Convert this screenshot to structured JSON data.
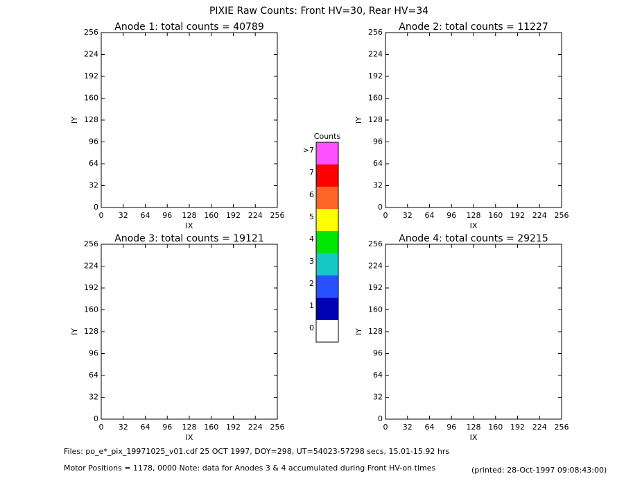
{
  "title": "PIXIE Raw Counts:  Front HV=30, Rear HV=34",
  "chart_data": [
    {
      "type": "heatmap",
      "title": "Anode 1: total counts = 40789",
      "xlabel": "IX",
      "ylabel": "IY",
      "xlim": [
        0,
        256
      ],
      "ylim": [
        0,
        256
      ],
      "xticks": [
        0,
        32,
        64,
        96,
        128,
        160,
        192,
        224,
        256
      ],
      "yticks": [
        0,
        32,
        64,
        96,
        128,
        160,
        192,
        224,
        256
      ]
    },
    {
      "type": "heatmap",
      "title": "Anode 2: total counts = 11227",
      "xlabel": "IX",
      "ylabel": "IY",
      "xlim": [
        0,
        256
      ],
      "ylim": [
        0,
        256
      ],
      "xticks": [
        0,
        32,
        64,
        96,
        128,
        160,
        192,
        224,
        256
      ],
      "yticks": [
        0,
        32,
        64,
        96,
        128,
        160,
        192,
        224,
        256
      ]
    },
    {
      "type": "heatmap",
      "title": "Anode 3: total counts = 19121",
      "xlabel": "IX",
      "ylabel": "IY",
      "xlim": [
        0,
        256
      ],
      "ylim": [
        0,
        256
      ],
      "xticks": [
        0,
        32,
        64,
        96,
        128,
        160,
        192,
        224,
        256
      ],
      "yticks": [
        0,
        32,
        64,
        96,
        128,
        160,
        192,
        224,
        256
      ]
    },
    {
      "type": "heatmap",
      "title": "Anode 4: total counts = 29215",
      "xlabel": "IX",
      "ylabel": "IY",
      "xlim": [
        0,
        256
      ],
      "ylim": [
        0,
        256
      ],
      "xticks": [
        0,
        32,
        64,
        96,
        128,
        160,
        192,
        224,
        256
      ],
      "yticks": [
        0,
        32,
        64,
        96,
        128,
        160,
        192,
        224,
        256
      ]
    }
  ],
  "colorbar": {
    "title": "Counts",
    "labels": [
      0,
      1,
      2,
      3,
      4,
      5,
      6,
      7,
      ">7"
    ],
    "colors": [
      "#ffffff",
      "#0000b4",
      "#2850ff",
      "#14c8c8",
      "#00e600",
      "#ffff00",
      "#ff6428",
      "#ff0000",
      "#ff50ff"
    ]
  },
  "footer": [
    "Files: po_e*_pix_19971025_v01.cdf    25 OCT 1997, DOY=298, UT=54023-57298 secs, 15.01-15.92 hrs",
    "Motor Positions = 1178, 0000    Note: data for Anodes 3 & 4 accumulated during Front HV-on times"
  ],
  "printed": "(printed: 28-Oct-1997 09:08:43:00)"
}
